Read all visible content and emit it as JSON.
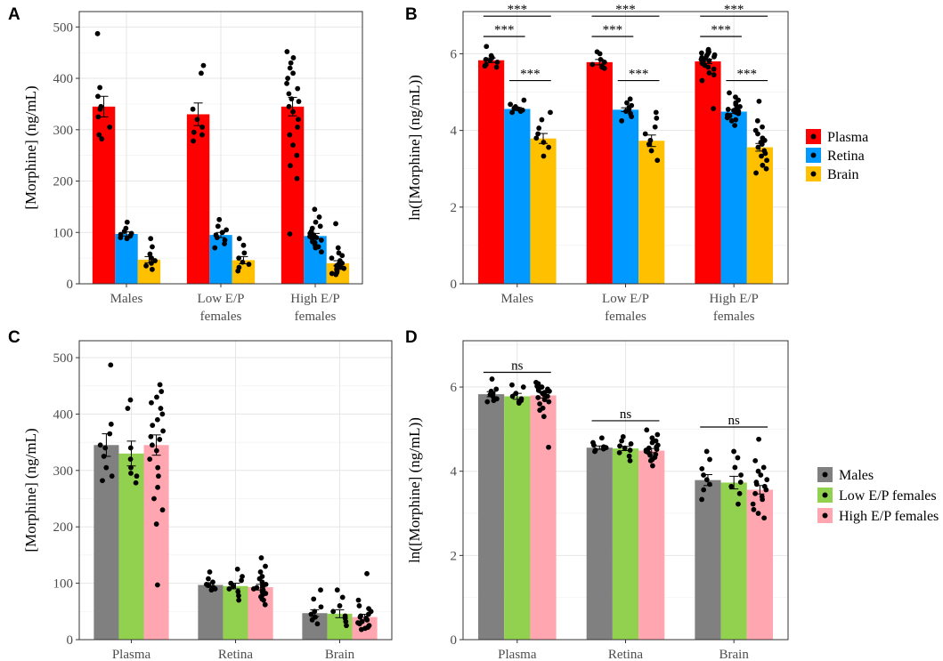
{
  "chart_data": [
    {
      "panel": "A",
      "type": "bar",
      "ylabel": "[Morphine] (ng/mL)",
      "ylim": [
        0,
        530
      ],
      "yticks": [
        0,
        100,
        200,
        300,
        400,
        500
      ],
      "categories": [
        "Males",
        "Low E/P\nfemales",
        "High E/P\nfemales"
      ],
      "series": [
        {
          "name": "Plasma",
          "color": "#ff0000",
          "values": [
            345,
            330,
            345
          ],
          "se": [
            20,
            22,
            18
          ],
          "points": [
            [
              487,
              382,
              365,
              345,
              340,
              325,
              305,
              290,
              282
            ],
            [
              425,
              410,
              340,
              320,
              305,
              295,
              290,
              278
            ],
            [
              452,
              440,
              430,
              420,
              410,
              400,
              390,
              380,
              370,
              360,
              355,
              345,
              335,
              320,
              305,
              290,
              270,
              250,
              230,
              205,
              97
            ]
          ]
        },
        {
          "name": "Retina",
          "color": "#0099ff",
          "values": [
            97,
            95,
            93
          ],
          "se": [
            4,
            5,
            5
          ],
          "points": [
            [
              120,
              108,
              102,
              98,
              96,
              93,
              90,
              88
            ],
            [
              125,
              112,
              105,
              100,
              95,
              90,
              85,
              78,
              70
            ],
            [
              145,
              130,
              120,
              112,
              108,
              102,
              98,
              95,
              92,
              90,
              88,
              85,
              82,
              80,
              76,
              72,
              70,
              62
            ]
          ]
        },
        {
          "name": "Brain",
          "color": "#ffc000",
          "values": [
            47,
            46,
            40
          ],
          "se": [
            6,
            7,
            5
          ],
          "points": [
            [
              88,
              72,
              58,
              50,
              45,
              40,
              35,
              28
            ],
            [
              88,
              75,
              60,
              50,
              42,
              38,
              32,
              25
            ],
            [
              117,
              70,
              60,
              55,
              50,
              45,
              42,
              40,
              38,
              35,
              32,
              30,
              28,
              25,
              22,
              20,
              18
            ]
          ]
        }
      ]
    },
    {
      "panel": "B",
      "type": "bar",
      "ylabel": "ln([Morphine] (ng/mL))",
      "ylim": [
        0,
        7.1
      ],
      "yticks": [
        0,
        2,
        4,
        6
      ],
      "categories": [
        "Males",
        "Low E/P\nfemales",
        "High E/P\nfemales"
      ],
      "series": [
        {
          "name": "Plasma",
          "color": "#ff0000",
          "values": [
            5.83,
            5.78,
            5.8
          ],
          "se": [
            0.06,
            0.07,
            0.06
          ],
          "points": [
            [
              6.19,
              5.95,
              5.9,
              5.85,
              5.82,
              5.78,
              5.72,
              5.68,
              5.65
            ],
            [
              6.05,
              6.0,
              5.85,
              5.78,
              5.72,
              5.68,
              5.65,
              5.62
            ],
            [
              6.11,
              6.08,
              6.05,
              6.02,
              6.0,
              5.97,
              5.95,
              5.92,
              5.9,
              5.87,
              5.85,
              5.82,
              5.78,
              5.75,
              5.7,
              5.65,
              5.6,
              5.5,
              5.45,
              5.3,
              4.57
            ]
          ]
        },
        {
          "name": "Retina",
          "color": "#0099ff",
          "values": [
            4.56,
            4.54,
            4.49
          ],
          "se": [
            0.04,
            0.05,
            0.05
          ],
          "points": [
            [
              4.79,
              4.68,
              4.62,
              4.58,
              4.56,
              4.53,
              4.5,
              4.47
            ],
            [
              4.82,
              4.72,
              4.65,
              4.6,
              4.55,
              4.5,
              4.44,
              4.36,
              4.25
            ],
            [
              4.98,
              4.87,
              4.79,
              4.72,
              4.68,
              4.62,
              4.58,
              4.55,
              4.52,
              4.5,
              4.47,
              4.44,
              4.4,
              4.38,
              4.33,
              4.28,
              4.25,
              4.13
            ]
          ]
        },
        {
          "name": "Brain",
          "color": "#ffc000",
          "values": [
            3.79,
            3.73,
            3.56
          ],
          "se": [
            0.13,
            0.15,
            0.1
          ],
          "points": [
            [
              4.47,
              4.28,
              4.06,
              3.91,
              3.8,
              3.69,
              3.56,
              3.33
            ],
            [
              4.47,
              4.32,
              4.09,
              3.91,
              3.74,
              3.64,
              3.47,
              3.22
            ],
            [
              4.76,
              4.25,
              4.09,
              4.0,
              3.91,
              3.8,
              3.74,
              3.69,
              3.64,
              3.56,
              3.47,
              3.4,
              3.33,
              3.22,
              3.09,
              3.0,
              2.89
            ]
          ]
        }
      ],
      "significance": [
        {
          "label": "***",
          "cat": 0,
          "from": 0,
          "to": 1,
          "y": 6.45
        },
        {
          "label": "***",
          "cat": 0,
          "from": 1,
          "to": 2,
          "y": 5.3
        },
        {
          "label": "***",
          "cat": 0,
          "from": 0,
          "to": 2,
          "y": 6.98
        },
        {
          "label": "***",
          "cat": 1,
          "from": 0,
          "to": 1,
          "y": 6.45
        },
        {
          "label": "***",
          "cat": 1,
          "from": 1,
          "to": 2,
          "y": 5.3
        },
        {
          "label": "***",
          "cat": 1,
          "from": 0,
          "to": 2,
          "y": 6.98
        },
        {
          "label": "***",
          "cat": 2,
          "from": 0,
          "to": 1,
          "y": 6.45
        },
        {
          "label": "***",
          "cat": 2,
          "from": 1,
          "to": 2,
          "y": 5.3
        },
        {
          "label": "***",
          "cat": 2,
          "from": 0,
          "to": 2,
          "y": 6.98
        }
      ]
    },
    {
      "panel": "C",
      "type": "bar",
      "ylabel": "[Morphine] (ng/mL)",
      "ylim": [
        0,
        530
      ],
      "yticks": [
        0,
        100,
        200,
        300,
        400,
        500
      ],
      "categories": [
        "Plasma",
        "Retina",
        "Brain"
      ],
      "series": [
        {
          "name": "Males",
          "color": "#808080",
          "values": [
            345,
            97,
            47
          ],
          "se": [
            20,
            4,
            6
          ],
          "points": [
            [
              487,
              382,
              365,
              345,
              340,
              325,
              305,
              290,
              282
            ],
            [
              120,
              108,
              102,
              98,
              96,
              93,
              90,
              88
            ],
            [
              88,
              72,
              58,
              50,
              45,
              40,
              35,
              28
            ]
          ]
        },
        {
          "name": "Low E/P females",
          "color": "#92d050",
          "values": [
            330,
            95,
            46
          ],
          "se": [
            22,
            5,
            7
          ],
          "points": [
            [
              425,
              410,
              340,
              320,
              305,
              295,
              290,
              278
            ],
            [
              125,
              112,
              105,
              100,
              95,
              90,
              85,
              78,
              70
            ],
            [
              88,
              75,
              60,
              50,
              42,
              38,
              32,
              25
            ]
          ]
        },
        {
          "name": "High E/P females",
          "color": "#ffa6b0",
          "values": [
            345,
            93,
            40
          ],
          "se": [
            18,
            5,
            5
          ],
          "points": [
            [
              452,
              440,
              430,
              420,
              410,
              400,
              390,
              380,
              370,
              360,
              355,
              345,
              335,
              320,
              305,
              290,
              270,
              250,
              230,
              205,
              97
            ],
            [
              145,
              130,
              120,
              112,
              108,
              102,
              98,
              95,
              92,
              90,
              88,
              85,
              82,
              80,
              76,
              72,
              70,
              62
            ],
            [
              117,
              70,
              60,
              55,
              50,
              45,
              42,
              40,
              38,
              35,
              32,
              30,
              28,
              25,
              22,
              20,
              18
            ]
          ]
        }
      ]
    },
    {
      "panel": "D",
      "type": "bar",
      "ylabel": "ln([Morphine] (ng/mL))",
      "ylim": [
        0,
        7.1
      ],
      "yticks": [
        0,
        2,
        4,
        6
      ],
      "categories": [
        "Plasma",
        "Retina",
        "Brain"
      ],
      "series": [
        {
          "name": "Males",
          "color": "#808080",
          "values": [
            5.83,
            4.56,
            3.79
          ],
          "se": [
            0.06,
            0.04,
            0.13
          ],
          "points": [
            [
              6.19,
              5.95,
              5.9,
              5.85,
              5.82,
              5.78,
              5.72,
              5.68,
              5.65
            ],
            [
              4.79,
              4.68,
              4.62,
              4.58,
              4.56,
              4.53,
              4.5,
              4.47
            ],
            [
              4.47,
              4.28,
              4.06,
              3.91,
              3.8,
              3.69,
              3.56,
              3.33
            ]
          ]
        },
        {
          "name": "Low E/P females",
          "color": "#92d050",
          "values": [
            5.78,
            4.54,
            3.73
          ],
          "se": [
            0.07,
            0.05,
            0.15
          ],
          "points": [
            [
              6.05,
              6.0,
              5.85,
              5.78,
              5.72,
              5.68,
              5.65,
              5.62
            ],
            [
              4.82,
              4.72,
              4.65,
              4.6,
              4.55,
              4.5,
              4.44,
              4.36,
              4.25
            ],
            [
              4.47,
              4.32,
              4.09,
              3.91,
              3.74,
              3.64,
              3.47,
              3.22
            ]
          ]
        },
        {
          "name": "High E/P females",
          "color": "#ffa6b0",
          "values": [
            5.8,
            4.49,
            3.56
          ],
          "se": [
            0.06,
            0.05,
            0.1
          ],
          "points": [
            [
              6.11,
              6.08,
              6.05,
              6.02,
              6.0,
              5.97,
              5.95,
              5.92,
              5.9,
              5.87,
              5.85,
              5.82,
              5.78,
              5.75,
              5.7,
              5.65,
              5.6,
              5.5,
              5.45,
              5.3,
              4.57
            ],
            [
              4.98,
              4.87,
              4.79,
              4.72,
              4.68,
              4.62,
              4.58,
              4.55,
              4.52,
              4.5,
              4.47,
              4.44,
              4.4,
              4.38,
              4.33,
              4.28,
              4.25,
              4.13
            ],
            [
              4.76,
              4.25,
              4.09,
              4.0,
              3.91,
              3.8,
              3.74,
              3.69,
              3.64,
              3.56,
              3.47,
              3.4,
              3.33,
              3.22,
              3.09,
              3.0,
              2.89
            ]
          ]
        }
      ],
      "significance": [
        {
          "label": "ns",
          "cat": 0,
          "from": 0,
          "to": 2,
          "y": 6.35
        },
        {
          "label": "ns",
          "cat": 1,
          "from": 0,
          "to": 2,
          "y": 5.2
        },
        {
          "label": "ns",
          "cat": 2,
          "from": 0,
          "to": 2,
          "y": 5.05
        }
      ]
    }
  ]
}
